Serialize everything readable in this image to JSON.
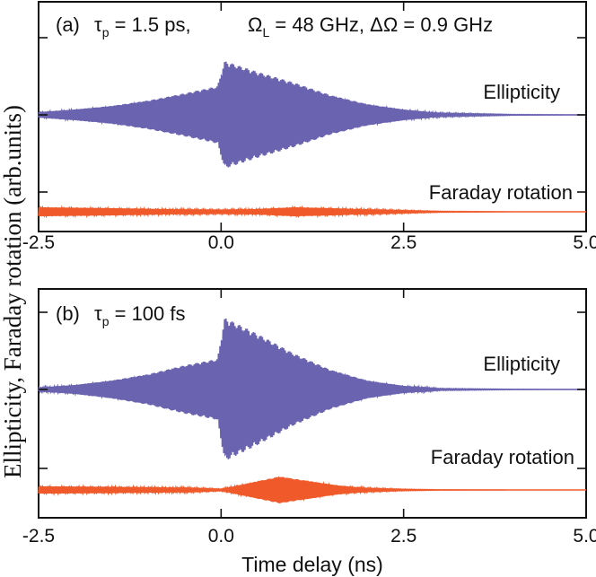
{
  "ylabel": "Ellipticity, Faraday rotation (arb.units)",
  "xlabel": "Time delay (ns)",
  "colors": {
    "ellipticity": "#6a63b0",
    "faraday": "#f05a2a",
    "axis": "#111111"
  },
  "chart_data": [
    {
      "type": "line",
      "panel_label": "(a)",
      "tau_symbol": "τ",
      "tau_sub": "p",
      "tau_value": " = 1.5 ps,",
      "omega_symbol": "Ω",
      "omega_sub": "L",
      "omega_value": " = 48 GHz, ",
      "domega_symbol": "ΔΩ",
      "domega_value": " = 0.9 GHz",
      "xlim": [
        -2.5,
        5.0
      ],
      "xticks": [
        "-2.5",
        "0.0",
        "2.5",
        "5.0"
      ],
      "xtick_values": [
        -2.5,
        0.0,
        2.5,
        5.0
      ],
      "series": [
        {
          "name": "Ellipticity",
          "envelope_before": {
            "t": [
              -2.5,
              -2.0,
              -1.5,
              -1.0,
              -0.5,
              -0.05
            ],
            "amp": [
              0.03,
              0.06,
              0.1,
              0.16,
              0.24,
              0.32
            ]
          },
          "envelope_after": {
            "t": [
              0.05,
              0.5,
              1.0,
              1.5,
              2.0,
              2.5,
              3.0,
              4.0,
              5.0
            ],
            "amp": [
              0.6,
              0.48,
              0.36,
              0.22,
              0.12,
              0.06,
              0.02,
              0.004,
              0.0
            ]
          }
        },
        {
          "name": "Faraday rotation",
          "envelope": {
            "t": [
              -2.5,
              -1.5,
              -0.5,
              0.0,
              0.5,
              1.0,
              1.5,
              2.0,
              2.5,
              3.0,
              4.0,
              5.0
            ],
            "amp": [
              0.05,
              0.04,
              0.025,
              0.02,
              0.03,
              0.05,
              0.04,
              0.025,
              0.015,
              0.005,
              0.0,
              0.0
            ]
          }
        }
      ]
    },
    {
      "type": "line",
      "panel_label": "(b)",
      "tau_symbol": "τ",
      "tau_sub": "p",
      "tau_value": " = 100 fs",
      "xlim": [
        -2.5,
        5.0
      ],
      "xticks": [
        "-2.5",
        "0.0",
        "2.5",
        "5.0"
      ],
      "xtick_values": [
        -2.5,
        0.0,
        2.5,
        5.0
      ],
      "series": [
        {
          "name": "Ellipticity",
          "envelope_before": {
            "t": [
              -2.5,
              -2.0,
              -1.5,
              -1.0,
              -0.5,
              -0.05
            ],
            "amp": [
              0.02,
              0.05,
              0.1,
              0.17,
              0.27,
              0.34
            ]
          },
          "envelope_after": {
            "t": [
              0.05,
              0.5,
              1.0,
              1.5,
              2.0,
              2.5,
              3.0,
              4.0,
              5.0
            ],
            "amp": [
              0.8,
              0.62,
              0.4,
              0.22,
              0.1,
              0.04,
              0.01,
              0.002,
              0.0
            ]
          }
        },
        {
          "name": "Faraday rotation",
          "envelope": {
            "t": [
              -2.5,
              -1.5,
              -0.5,
              0.0,
              0.4,
              0.8,
              1.2,
              1.6,
              2.0,
              2.5,
              3.0,
              4.0,
              5.0
            ],
            "amp": [
              0.04,
              0.035,
              0.025,
              0.01,
              0.08,
              0.15,
              0.1,
              0.05,
              0.02,
              0.008,
              0.002,
              0.0,
              0.0
            ]
          }
        }
      ]
    }
  ]
}
